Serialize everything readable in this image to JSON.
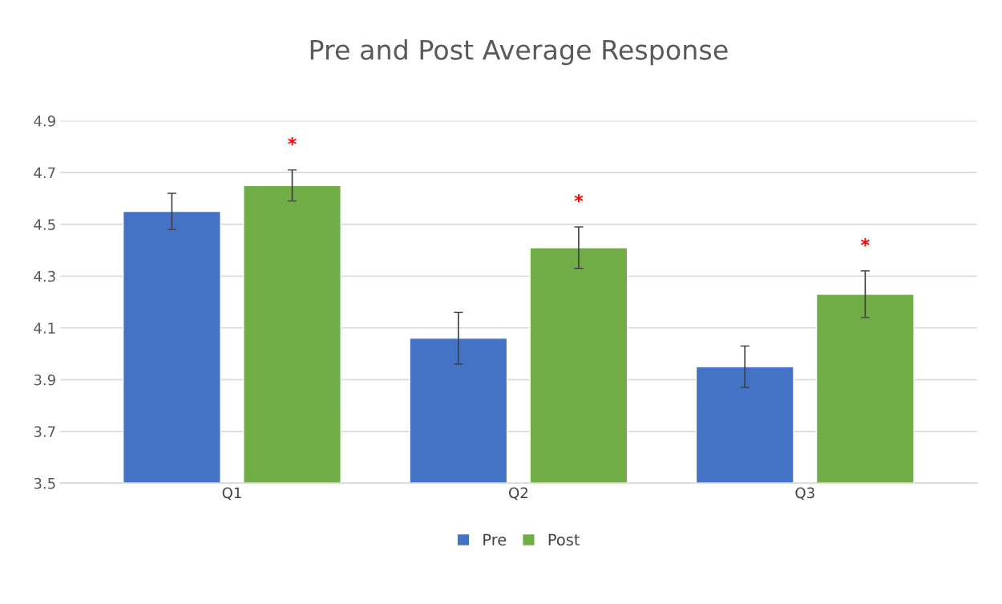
{
  "chart_data": {
    "type": "bar",
    "title": "Pre and Post Average Response",
    "categories": [
      "Q1",
      "Q2",
      "Q3"
    ],
    "series": [
      {
        "name": "Pre",
        "color": "#4472c4",
        "values": [
          4.55,
          4.06,
          3.95
        ],
        "errors": [
          0.07,
          0.1,
          0.08
        ]
      },
      {
        "name": "Post",
        "color": "#70ad47",
        "values": [
          4.65,
          4.41,
          4.23
        ],
        "errors": [
          0.06,
          0.08,
          0.09
        ]
      }
    ],
    "ylim": [
      3.5,
      4.9
    ],
    "yticks": [
      3.5,
      3.7,
      3.9,
      4.1,
      4.3,
      4.5,
      4.7,
      4.9
    ],
    "annotations": [
      "*",
      "*",
      "*"
    ],
    "grid": "y",
    "legend": "bottom"
  }
}
